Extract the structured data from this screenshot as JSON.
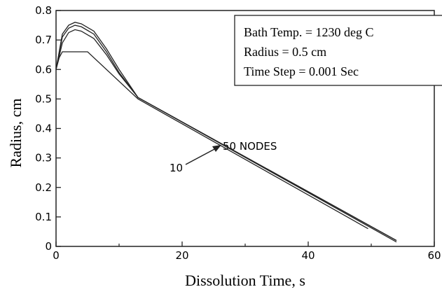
{
  "chart_data": {
    "type": "line",
    "xlabel": "Dissolution Time,  s",
    "ylabel": "Radius,  cm",
    "xlim": [
      0,
      60
    ],
    "xticks": [
      0,
      20,
      40,
      60
    ],
    "xminor": [
      10,
      30,
      50
    ],
    "ylim": [
      0,
      0.8
    ],
    "yticks": [
      0,
      0.1,
      0.2,
      0.3,
      0.4,
      0.5,
      0.6,
      0.7,
      0.8
    ],
    "color": "#222222",
    "series": [
      {
        "x": [
          0,
          1,
          2,
          3,
          4,
          6,
          8,
          10,
          13,
          54
        ],
        "values": [
          0.6,
          0.72,
          0.75,
          0.76,
          0.755,
          0.73,
          0.67,
          0.6,
          0.505,
          0.02
        ]
      },
      {
        "x": [
          0,
          1,
          2,
          3,
          4,
          6,
          8,
          10,
          13,
          54
        ],
        "values": [
          0.6,
          0.71,
          0.74,
          0.75,
          0.745,
          0.72,
          0.66,
          0.59,
          0.505,
          0.02
        ]
      },
      {
        "x": [
          0,
          1,
          2,
          3,
          4,
          6,
          8,
          10,
          13,
          54
        ],
        "values": [
          0.6,
          0.69,
          0.725,
          0.735,
          0.73,
          0.705,
          0.65,
          0.585,
          0.505,
          0.015
        ]
      },
      {
        "x": [
          0,
          0.5,
          1,
          5,
          13,
          49.5
        ],
        "values": [
          0.6,
          0.64,
          0.66,
          0.66,
          0.5,
          0.06
        ]
      }
    ],
    "textbox": [
      "Bath Temp. = 1230 deg C",
      "Radius = 0.5 cm",
      "Time Step = 0.001 Sec"
    ],
    "annotations": [
      "50 NODES",
      "10"
    ]
  }
}
